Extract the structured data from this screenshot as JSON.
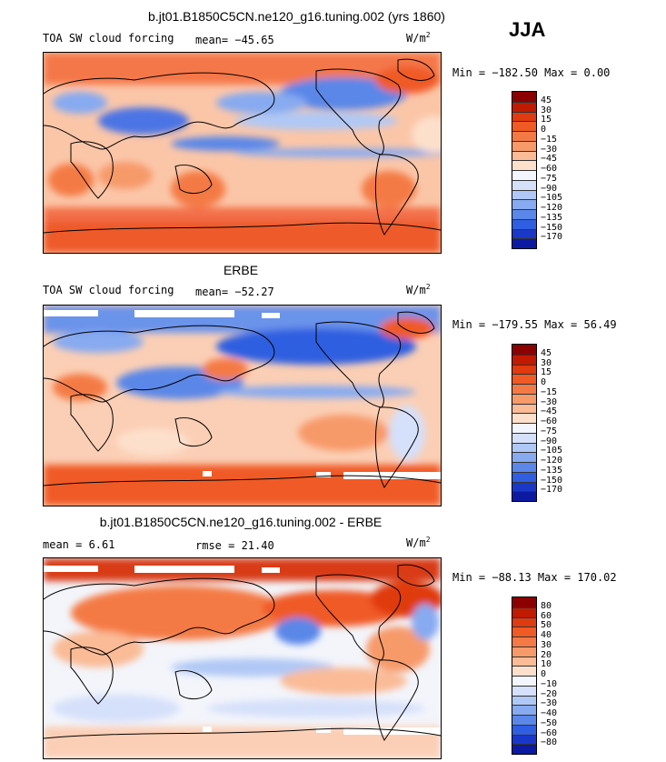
{
  "header": {
    "title": "b.jt01.B1850C5CN.ne120_g16.tuning.002 (yrs 1860)",
    "season": "JJA"
  },
  "panels": [
    {
      "title": "",
      "field_label": "TOA SW cloud forcing",
      "stat_text": "mean= −45.65",
      "units": "W/m",
      "units_exp": "2",
      "minmax": "Min = −182.50 Max =   0.00",
      "colorbar": {
        "levels": [
          "45",
          "30",
          "15",
          "0",
          "−15",
          "−30",
          "−45",
          "−60",
          "−75",
          "−90",
          "−105",
          "−120",
          "−135",
          "−150",
          "−170"
        ],
        "colors": [
          "#8b0000",
          "#c01a00",
          "#e03a10",
          "#f05a25",
          "#f47a45",
          "#f79a6a",
          "#fabb96",
          "#fde0cc",
          "#f4f6ff",
          "#d5e0fa",
          "#b0c8f5",
          "#87aaf0",
          "#5a87e8",
          "#2f5ee0",
          "#1a38c8",
          "#0b1aa0"
        ]
      }
    },
    {
      "title": "ERBE",
      "field_label": "TOA SW cloud forcing",
      "stat_text": "mean= −52.27",
      "units": "W/m",
      "units_exp": "2",
      "minmax": "Min = −179.55 Max =  56.49",
      "colorbar": {
        "levels": [
          "45",
          "30",
          "15",
          "0",
          "−15",
          "−30",
          "−45",
          "−60",
          "−75",
          "−90",
          "−105",
          "−120",
          "−135",
          "−150",
          "−170"
        ],
        "colors": [
          "#8b0000",
          "#c01a00",
          "#e03a10",
          "#f05a25",
          "#f47a45",
          "#f79a6a",
          "#fabb96",
          "#fde0cc",
          "#f4f6ff",
          "#d5e0fa",
          "#b0c8f5",
          "#87aaf0",
          "#5a87e8",
          "#2f5ee0",
          "#1a38c8",
          "#0b1aa0"
        ]
      }
    },
    {
      "title": "b.jt01.B1850C5CN.ne120_g16.tuning.002 - ERBE",
      "field_label": "mean =    6.61",
      "stat_text": "rmse =  21.40",
      "units": "W/m",
      "units_exp": "2",
      "minmax": "Min = −88.13 Max = 170.02",
      "colorbar": {
        "levels": [
          "80",
          "60",
          "50",
          "40",
          "30",
          "20",
          "10",
          "0",
          "−10",
          "−20",
          "−30",
          "−40",
          "−50",
          "−60",
          "−80"
        ],
        "colors": [
          "#8b0000",
          "#c01a00",
          "#e03a10",
          "#f05a25",
          "#f47a45",
          "#f79a6a",
          "#fabb96",
          "#fde0cc",
          "#f4f6ff",
          "#d5e0fa",
          "#b0c8f5",
          "#87aaf0",
          "#5a87e8",
          "#2f5ee0",
          "#1a38c8",
          "#0b1aa0"
        ]
      }
    }
  ]
}
